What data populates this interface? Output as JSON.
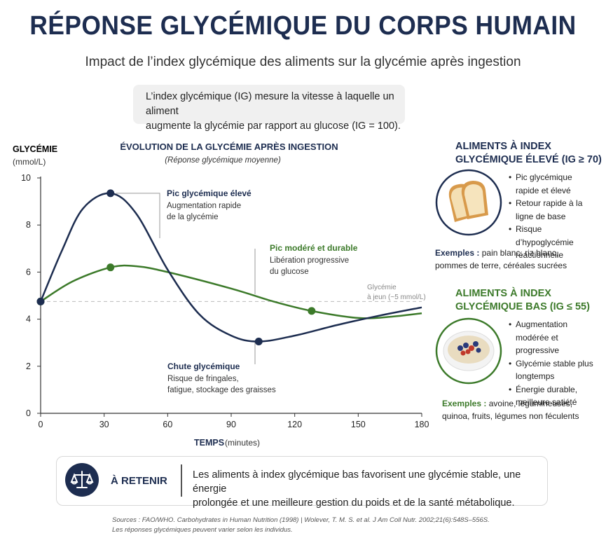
{
  "title": "RÉPONSE GLYCÉMIQUE DU CORPS HUMAIN",
  "subtitle": "Impact de l’index glycémique des aliments sur la glycémie après ingestion",
  "ig_definition": {
    "line1": "L’index glycémique (IG) mesure la vitesse à laquelle un aliment",
    "line2": "augmente la glycémie par rapport au glucose (IG = 100)."
  },
  "chart_data": {
    "type": "line",
    "title": "ÉVOLUTION DE LA GLYCÉMIE APRÈS INGESTION",
    "subtitle": "(Réponse glycémique moyenne)",
    "ylabel": "GLYCÉMIE",
    "ylabel_unit": "(mmol/L)",
    "xlabel": "TEMPS",
    "xlabel_unit": "(minutes)",
    "xlim": [
      0,
      180
    ],
    "ylim": [
      0,
      10
    ],
    "xticks": [
      0,
      30,
      60,
      90,
      120,
      150,
      180
    ],
    "yticks": [
      0,
      2,
      4,
      6,
      8,
      10
    ],
    "baseline": {
      "value": 4.75,
      "label1": "Glycémie",
      "label2": "à jeun (~5 mmol/L)"
    },
    "series": [
      {
        "name": "IG élevé",
        "color": "#1d2d50",
        "x": [
          0,
          10,
          20,
          33,
          45,
          60,
          75,
          90,
          103,
          120,
          140,
          160,
          180
        ],
        "y": [
          4.75,
          6.9,
          8.7,
          9.35,
          8.5,
          6.1,
          4.2,
          3.3,
          3.05,
          3.3,
          3.75,
          4.15,
          4.5
        ],
        "markers": [
          0,
          3,
          8
        ]
      },
      {
        "name": "IG bas",
        "color": "#3c7a2a",
        "x": [
          0,
          15,
          33,
          45,
          60,
          90,
          110,
          128,
          150,
          165,
          180
        ],
        "y": [
          4.75,
          5.6,
          6.2,
          6.25,
          6.0,
          5.3,
          4.75,
          4.35,
          4.05,
          4.1,
          4.25
        ],
        "markers": [
          0,
          2,
          7
        ]
      }
    ],
    "annotations": {
      "peak_high": {
        "title": "Pic glycémique élevé",
        "line1": "Augmentation rapide",
        "line2": "de la glycémie"
      },
      "peak_low": {
        "title": "Pic modéré et durable",
        "line1": "Libération progressive",
        "line2": "du glucose"
      },
      "drop": {
        "title": "Chute glycémique",
        "line1": "Risque de fringales,",
        "line2": "fatigue, stockage des graisses"
      }
    }
  },
  "high_ig": {
    "title1": "ALIMENTS À INDEX",
    "title2": "GLYCÉMIQUE ÉLEVÉ (IG ≥ 70)",
    "bullets": [
      "Pic glycémique rapide et élevé",
      "Retour rapide à la ligne de base",
      "Risque d’hypoglycémie réactionnelle"
    ],
    "examples_label": "Exemples :",
    "examples_line1": "pain blanc, riz blanc,",
    "examples_line2": "pommes de terre, céréales sucrées",
    "icon": "bread-icon",
    "accent": "#1d2d50"
  },
  "low_ig": {
    "title1": "ALIMENTS À INDEX",
    "title2": "GLYCÉMIQUE BAS (IG ≤ 55)",
    "bullets": [
      "Augmentation modérée et progressive",
      "Glycémie stable plus longtemps",
      "Énergie durable, meilleure satiété"
    ],
    "examples_label": "Exemples :",
    "examples_line1": "avoine, légumineuses,",
    "examples_line2": "quinoa, fruits, légumes non féculents",
    "icon": "oatmeal-bowl-icon",
    "accent": "#3c7a2a"
  },
  "retenir": {
    "label": "À RETENIR",
    "line1": "Les aliments à index glycémique bas favorisent une glycémie stable, une énergie",
    "line2": "prolongée et une meilleure gestion du poids et de la santé métabolique.",
    "icon": "scales-icon"
  },
  "sources": "Sources : FAO/WHO. Carbohydrates in Human Nutrition (1998)  |  Wolever, T. M. S. et al. J Am Coll Nutr. 2002;21(6):548S–556S.",
  "note": "Les réponses glycémiques peuvent varier selon les individus."
}
